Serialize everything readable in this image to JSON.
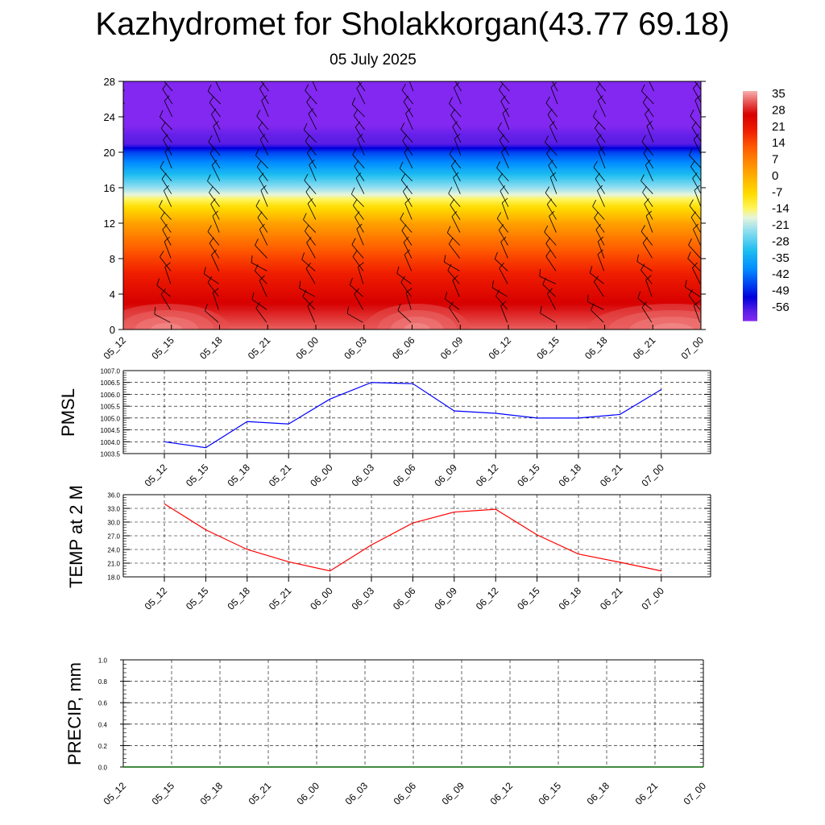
{
  "header": {
    "title": "Kazhydromet for Sholakkorgan(43.77 69.18)",
    "subtitle": "05 July 2025"
  },
  "chart_data": [
    {
      "type": "heatmap",
      "title": "",
      "x_labels": [
        "05_12",
        "05_15",
        "05_18",
        "05_21",
        "06_00",
        "06_03",
        "06_06",
        "06_09",
        "06_12",
        "06_15",
        "06_18",
        "06_21",
        "07_00"
      ],
      "y_ticks": [
        "0",
        "4",
        "8",
        "12",
        "16",
        "20",
        "24",
        "28"
      ],
      "ylim": [
        0,
        28
      ],
      "colorbar": {
        "labels": [
          "35",
          "28",
          "21",
          "14",
          "7",
          "0",
          "-7",
          "-14",
          "-21",
          "-28",
          "-35",
          "-42",
          "-49",
          "-56"
        ],
        "range": [
          -60,
          38
        ]
      },
      "temperature_profile": [
        {
          "level": 0,
          "value": 34
        },
        {
          "level": 2,
          "value": 30
        },
        {
          "level": 4,
          "value": 26
        },
        {
          "level": 6,
          "value": 22
        },
        {
          "level": 8,
          "value": 17
        },
        {
          "level": 10,
          "value": 11
        },
        {
          "level": 12,
          "value": 4
        },
        {
          "level": 14,
          "value": -7
        },
        {
          "level": 16,
          "value": -21
        },
        {
          "level": 18,
          "value": -33
        },
        {
          "level": 20,
          "value": -44
        },
        {
          "level": 21,
          "value": -56
        },
        {
          "level": 22,
          "value": -57
        },
        {
          "level": 23,
          "value": -60
        },
        {
          "level": 28,
          "value": -60
        }
      ],
      "wind_barbs": true
    },
    {
      "type": "line",
      "ylabel": "PMSL",
      "categories": [
        "05_12",
        "05_15",
        "05_18",
        "05_21",
        "06_00",
        "06_03",
        "06_06",
        "06_09",
        "06_12",
        "06_15",
        "06_18",
        "06_21",
        "07_00"
      ],
      "ylim": [
        1003.5,
        1007.0
      ],
      "y_ticks": [
        "1003.5",
        "1004.0",
        "1004.5",
        "1005.0",
        "1005.5",
        "1006.0",
        "1006.5",
        "1007.0"
      ],
      "series": [
        {
          "values": [
            1004.0,
            1003.75,
            1004.85,
            1004.75,
            1005.8,
            1006.5,
            1006.45,
            1005.3,
            1005.2,
            1005.0,
            1005.0,
            1005.15,
            1006.2
          ],
          "color": "#0000ff"
        }
      ],
      "grid": true
    },
    {
      "type": "line",
      "ylabel": "TEMP at 2 M",
      "categories": [
        "05_12",
        "05_15",
        "05_18",
        "05_21",
        "06_00",
        "06_03",
        "06_06",
        "06_09",
        "06_12",
        "06_15",
        "06_18",
        "06_21",
        "07_00"
      ],
      "ylim": [
        18.0,
        36.0
      ],
      "y_ticks": [
        "18.0",
        "21.0",
        "24.0",
        "27.0",
        "30.0",
        "33.0",
        "36.0"
      ],
      "series": [
        {
          "values": [
            34.0,
            28.3,
            24.0,
            21.3,
            19.3,
            25.0,
            29.8,
            32.2,
            32.8,
            27.2,
            23.0,
            21.2,
            19.3
          ],
          "color": "#ff0000"
        }
      ],
      "grid": true
    },
    {
      "type": "line",
      "ylabel": "PRECIP, mm",
      "categories": [
        "05_12",
        "05_15",
        "05_18",
        "05_21",
        "06_00",
        "06_03",
        "06_06",
        "06_09",
        "06_12",
        "06_15",
        "06_18",
        "06_21",
        "07_00"
      ],
      "ylim": [
        0.0,
        1.0
      ],
      "y_ticks": [
        "0.0",
        "0.2",
        "0.4",
        "0.6",
        "0.8",
        "1.0"
      ],
      "series": [
        {
          "values": [
            0,
            0,
            0,
            0,
            0,
            0,
            0,
            0,
            0,
            0,
            0,
            0,
            0
          ],
          "color": "#006400"
        }
      ],
      "grid": true
    }
  ]
}
